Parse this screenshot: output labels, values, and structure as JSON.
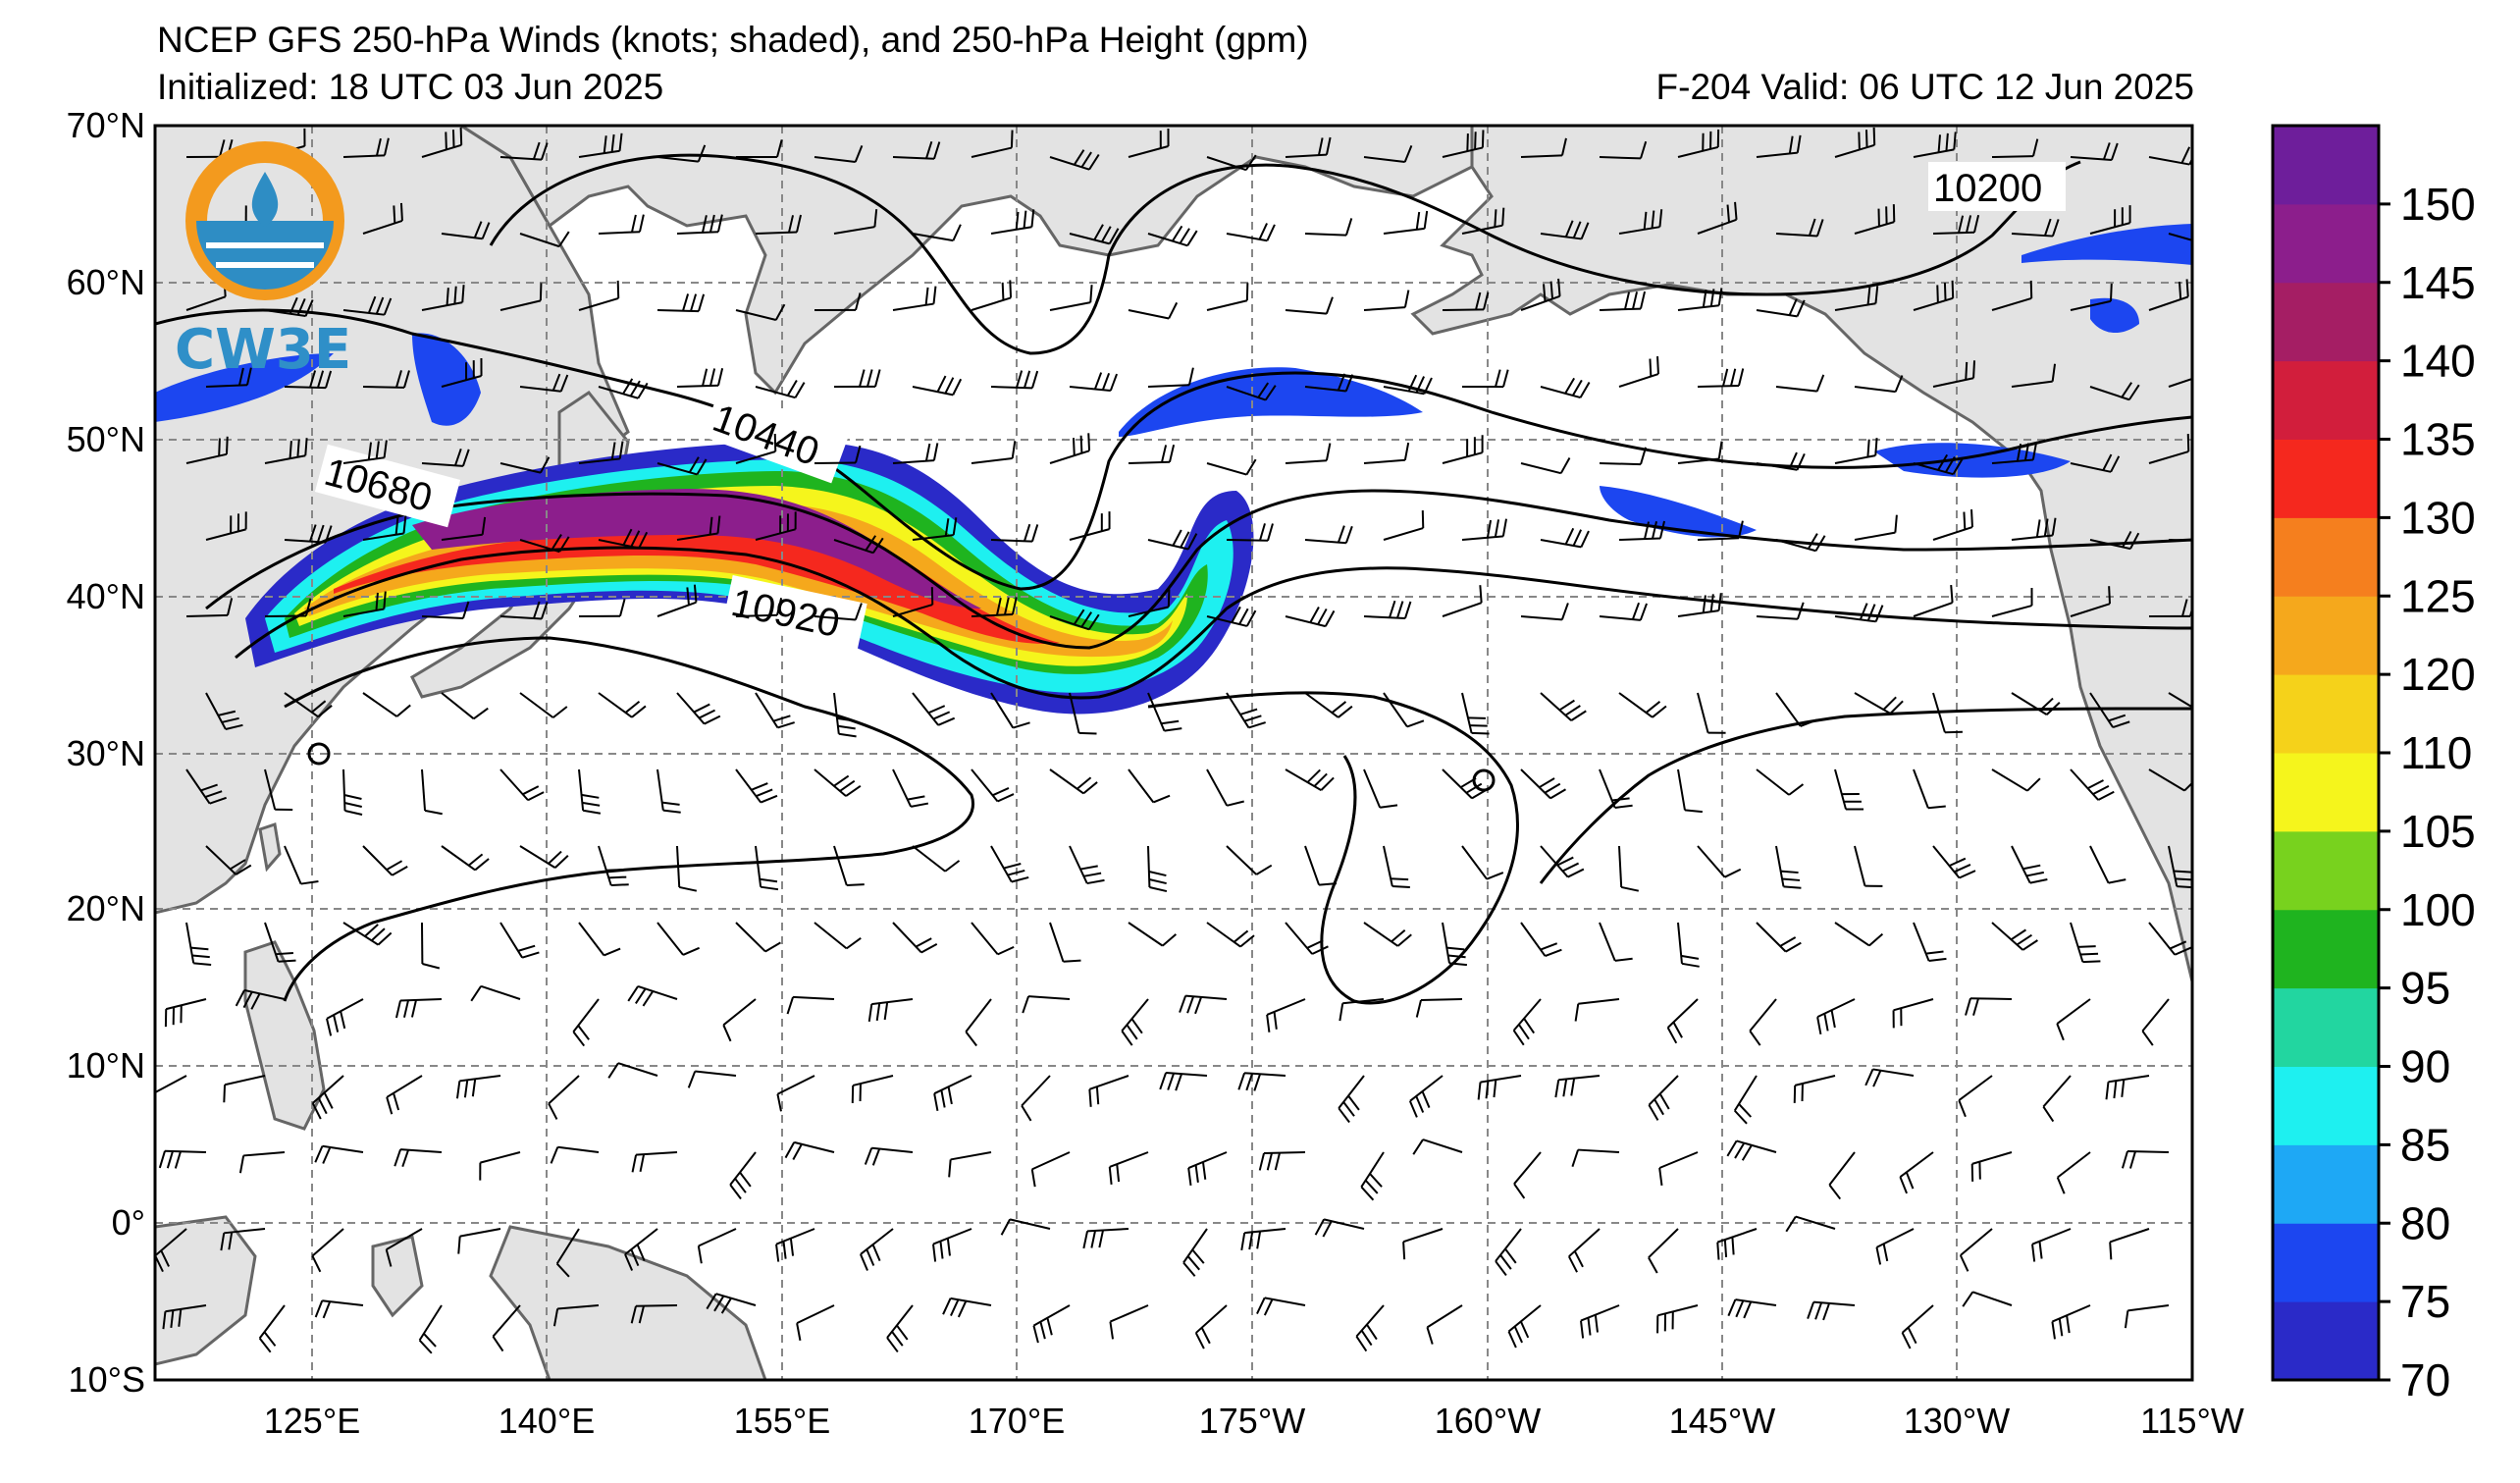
{
  "header": {
    "title": "NCEP GFS 250-hPa Winds (knots; shaded), and 250-hPa Height (gpm)",
    "initialized": "Initialized: 18 UTC 03 Jun 2025",
    "valid": "F-204  Valid: 06 UTC 12 Jun 2025"
  },
  "logo": {
    "text": "CW3E",
    "colors": {
      "ring": "#f39a1e",
      "blue": "#2e8dc4"
    }
  },
  "map": {
    "lat_labels": [
      "70°N",
      "60°N",
      "50°N",
      "40°N",
      "30°N",
      "20°N",
      "10°N",
      "0°",
      "10°S"
    ],
    "lon_labels": [
      "125°E",
      "140°E",
      "155°E",
      "170°E",
      "175°W",
      "160°W",
      "145°W",
      "130°W",
      "115°W"
    ],
    "lat_range": [
      -10,
      70
    ],
    "lon_range_east": [
      115,
      245
    ],
    "contour_labels": [
      {
        "text": "10200",
        "value": 10200
      },
      {
        "text": "10440",
        "value": 10440
      },
      {
        "text": "10680",
        "value": 10680
      },
      {
        "text": "10920",
        "value": 10920
      }
    ],
    "colors": {
      "land": "#e3e3e3",
      "coast": "#666666",
      "grid": "#888888",
      "contour": "#000000"
    }
  },
  "colorbar": {
    "levels": [
      "70",
      "75",
      "80",
      "85",
      "90",
      "95",
      "100",
      "105",
      "110",
      "120",
      "125",
      "130",
      "135",
      "140",
      "145",
      "150"
    ],
    "colors": [
      "#2a2ac8",
      "#1c46f0",
      "#1ea8f5",
      "#1ef0f0",
      "#22d6a0",
      "#1fb41f",
      "#78d21e",
      "#f5f51c",
      "#f5d21a",
      "#f5a81c",
      "#f57f1e",
      "#f5281e",
      "#d21e3c",
      "#a51e64",
      "#8c1e8c",
      "#6e1e9b"
    ]
  }
}
